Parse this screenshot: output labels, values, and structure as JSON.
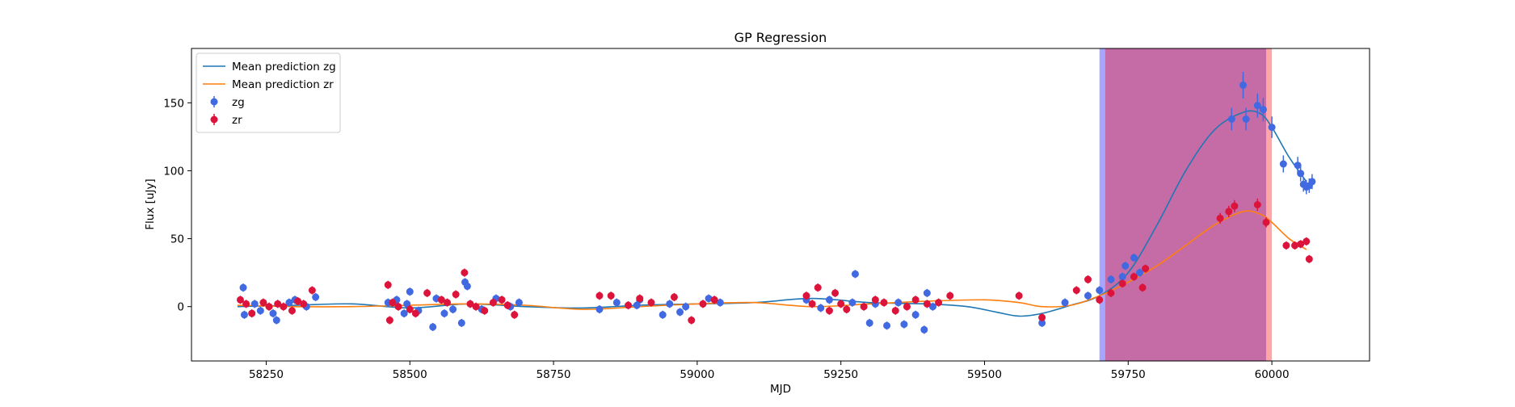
{
  "chart_data": {
    "type": "scatter",
    "title": "GP Regression",
    "xlabel": "MJD",
    "ylabel": "Flux [uJy]",
    "xlim": [
      58120,
      60170
    ],
    "ylim": [
      -40,
      190
    ],
    "xticks": [
      58250,
      58500,
      58750,
      59000,
      59250,
      59500,
      59750,
      60000
    ],
    "yticks": [
      0,
      50,
      100,
      150
    ],
    "grid": false,
    "legend_position": "top-left",
    "legend": [
      {
        "label": "Mean prediction zg",
        "kind": "line",
        "color": "#1f77b4"
      },
      {
        "label": "Mean prediction zr",
        "kind": "line",
        "color": "#ff7f0e"
      },
      {
        "label": "zg",
        "kind": "marker",
        "color": "#4169e1"
      },
      {
        "label": "zr",
        "kind": "marker",
        "color": "#dc143c"
      }
    ],
    "spans": [
      {
        "x0": 59700,
        "x1": 59990,
        "color": "#0000ff",
        "opacity": 0.35
      },
      {
        "x0": 59710,
        "x1": 60000,
        "color": "#ff0000",
        "opacity": 0.35
      }
    ],
    "series": [
      {
        "name": "Mean prediction zg",
        "kind": "line",
        "color": "#1f77b4",
        "x": [
          58200,
          58300,
          58400,
          58500,
          58600,
          58700,
          58800,
          58900,
          59000,
          59100,
          59200,
          59300,
          59400,
          59470,
          59520,
          59560,
          59600,
          59650,
          59700,
          59750,
          59800,
          59850,
          59900,
          59950,
          59980,
          60000,
          60030,
          60060
        ],
        "y": [
          0,
          1,
          2,
          -1,
          2,
          0,
          -1,
          1,
          2,
          3,
          6,
          3,
          2,
          0,
          -4,
          -7,
          -5,
          1,
          8,
          25,
          60,
          100,
          130,
          143,
          142,
          132,
          110,
          92
        ]
      },
      {
        "name": "Mean prediction zr",
        "kind": "line",
        "color": "#ff7f0e",
        "x": [
          58200,
          58300,
          58400,
          58500,
          58600,
          58700,
          58800,
          58900,
          59000,
          59100,
          59200,
          59300,
          59400,
          59500,
          59560,
          59600,
          59650,
          59700,
          59750,
          59800,
          59850,
          59900,
          59950,
          59980,
          60000,
          60030,
          60060
        ],
        "y": [
          1,
          0,
          0,
          1,
          2,
          1,
          -2,
          0,
          2,
          3,
          0,
          2,
          4,
          5,
          3,
          0,
          1,
          8,
          18,
          30,
          45,
          60,
          70,
          68,
          62,
          50,
          42
        ]
      },
      {
        "name": "zg",
        "kind": "points",
        "color": "#4169e1",
        "x": [
          58210,
          58212,
          58230,
          58240,
          58262,
          58268,
          58290,
          58300,
          58320,
          58336,
          58462,
          58477,
          58490,
          58495,
          58500,
          58515,
          58540,
          58546,
          58560,
          58575,
          58590,
          58596,
          58600,
          58625,
          58650,
          58675,
          58690,
          58830,
          58860,
          58895,
          58900,
          58940,
          58952,
          58970,
          58980,
          59020,
          59040,
          59190,
          59215,
          59230,
          59270,
          59275,
          59300,
          59310,
          59330,
          59350,
          59360,
          59380,
          59395,
          59400,
          59410,
          59600,
          59640,
          59680,
          59700,
          59720,
          59740,
          59745,
          59760,
          59770,
          59930,
          59950,
          59955,
          59975,
          59985,
          60000,
          60020,
          60045,
          60050,
          60055,
          60060,
          60065,
          60070
        ],
        "y": [
          14,
          -6,
          2,
          -3,
          -5,
          -10,
          3,
          5,
          0,
          7,
          3,
          5,
          -5,
          2,
          11,
          -3,
          -15,
          6,
          -5,
          -2,
          -12,
          18,
          15,
          -2,
          6,
          0,
          3,
          -2,
          3,
          1,
          5,
          -6,
          2,
          -4,
          0,
          6,
          3,
          5,
          -1,
          5,
          3,
          24,
          -12,
          2,
          -14,
          3,
          -13,
          -6,
          -17,
          10,
          0,
          -12,
          3,
          8,
          12,
          20,
          22,
          30,
          36,
          25,
          138,
          163,
          138,
          148,
          145,
          132,
          105,
          104,
          98,
          90,
          88,
          89,
          92
        ]
      },
      {
        "name": "zr",
        "kind": "points",
        "color": "#dc143c",
        "x": [
          58205,
          58215,
          58225,
          58245,
          58255,
          58270,
          58280,
          58295,
          58305,
          58315,
          58330,
          58462,
          58465,
          58470,
          58480,
          58500,
          58510,
          58530,
          58555,
          58565,
          58580,
          58595,
          58605,
          58615,
          58630,
          58645,
          58660,
          58670,
          58682,
          58830,
          58850,
          58880,
          58900,
          58920,
          58960,
          58990,
          59010,
          59030,
          59190,
          59200,
          59210,
          59230,
          59240,
          59250,
          59260,
          59290,
          59310,
          59325,
          59345,
          59365,
          59380,
          59400,
          59420,
          59440,
          59560,
          59600,
          59660,
          59680,
          59700,
          59720,
          59740,
          59760,
          59775,
          59780,
          59910,
          59925,
          59935,
          59975,
          59990,
          60025,
          60040,
          60050,
          60060,
          60065
        ],
        "y": [
          5,
          2,
          -5,
          3,
          0,
          2,
          0,
          -3,
          4,
          2,
          12,
          16,
          -10,
          3,
          0,
          -2,
          -5,
          10,
          5,
          3,
          9,
          25,
          2,
          0,
          -3,
          3,
          5,
          1,
          -6,
          8,
          8,
          1,
          6,
          3,
          7,
          -10,
          2,
          5,
          8,
          2,
          14,
          -3,
          10,
          2,
          -2,
          0,
          5,
          3,
          -3,
          0,
          5,
          2,
          3,
          8,
          8,
          -8,
          12,
          20,
          5,
          10,
          17,
          22,
          14,
          28,
          65,
          70,
          74,
          75,
          62,
          45,
          45,
          46,
          48,
          35
        ]
      }
    ]
  }
}
